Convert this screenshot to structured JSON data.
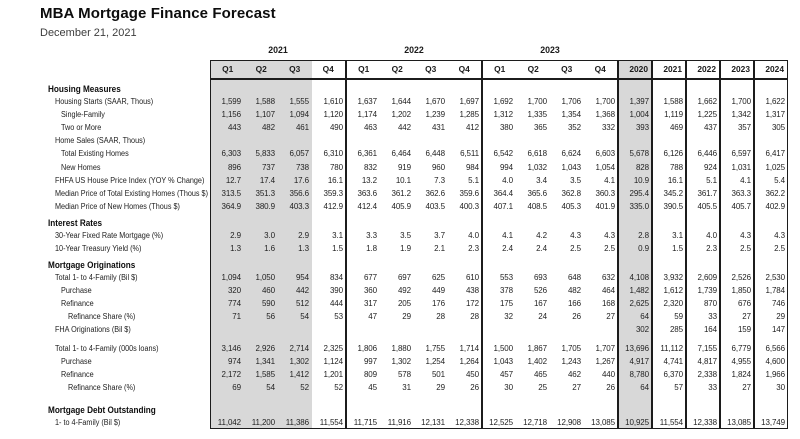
{
  "page": {
    "title": "MBA Mortgage Finance Forecast",
    "subtitle": "December 21, 2021"
  },
  "table": {
    "highlight_color": "#d8d8d8",
    "border_color": "#1c1c1c",
    "year_groups": [
      {
        "label": "2021",
        "quarters": [
          "Q1",
          "Q2",
          "Q3",
          "Q4"
        ]
      },
      {
        "label": "2022",
        "quarters": [
          "Q1",
          "Q2",
          "Q3",
          "Q4"
        ]
      },
      {
        "label": "2023",
        "quarters": [
          "Q1",
          "Q2",
          "Q3",
          "Q4"
        ]
      }
    ],
    "annual_columns": [
      "2020",
      "2021",
      "2022",
      "2023",
      "2024"
    ],
    "rows": [
      {
        "type": "section",
        "label": "Housing Measures"
      },
      {
        "type": "data",
        "indent": 1,
        "label": "Housing Starts (SAAR, Thous)",
        "cells": [
          "1,599",
          "1,588",
          "1,555",
          "1,610",
          "1,637",
          "1,644",
          "1,670",
          "1,697",
          "1,692",
          "1,700",
          "1,706",
          "1,700",
          "1,397",
          "1,588",
          "1,662",
          "1,700",
          "1,622"
        ]
      },
      {
        "type": "data",
        "indent": 2,
        "label": "Single-Family",
        "cells": [
          "1,156",
          "1,107",
          "1,094",
          "1,120",
          "1,174",
          "1,202",
          "1,239",
          "1,285",
          "1,312",
          "1,335",
          "1,354",
          "1,368",
          "1,004",
          "1,119",
          "1,225",
          "1,342",
          "1,317"
        ]
      },
      {
        "type": "data",
        "indent": 2,
        "label": "Two or More",
        "cells": [
          "443",
          "482",
          "461",
          "490",
          "463",
          "442",
          "431",
          "412",
          "380",
          "365",
          "352",
          "332",
          "393",
          "469",
          "437",
          "357",
          "305"
        ]
      },
      {
        "type": "data",
        "indent": 1,
        "label": "Home Sales (SAAR, Thous)",
        "cells": [
          "",
          "",
          "",
          "",
          "",
          "",
          "",
          "",
          "",
          "",
          "",
          "",
          "",
          "",
          "",
          "",
          ""
        ]
      },
      {
        "type": "data",
        "indent": 2,
        "label": "Total Existing Homes",
        "cells": [
          "6,303",
          "5,833",
          "6,057",
          "6,310",
          "6,361",
          "6,464",
          "6,448",
          "6,511",
          "6,542",
          "6,618",
          "6,624",
          "6,603",
          "5,678",
          "6,126",
          "6,446",
          "6,597",
          "6,417"
        ]
      },
      {
        "type": "data",
        "indent": 2,
        "label": "New Homes",
        "cells": [
          "896",
          "737",
          "738",
          "780",
          "832",
          "919",
          "960",
          "984",
          "994",
          "1,032",
          "1,043",
          "1,054",
          "828",
          "788",
          "924",
          "1,031",
          "1,025"
        ]
      },
      {
        "type": "data",
        "indent": 1,
        "label": "FHFA US House Price Index (YOY % Change)",
        "cells": [
          "12.7",
          "17.4",
          "17.6",
          "16.1",
          "13.2",
          "10.1",
          "7.3",
          "5.1",
          "4.0",
          "3.4",
          "3.5",
          "4.1",
          "10.9",
          "16.1",
          "5.1",
          "4.1",
          "5.4"
        ]
      },
      {
        "type": "data",
        "indent": 1,
        "label": "Median Price of Total Existing Homes (Thous $)",
        "cells": [
          "313.5",
          "351.3",
          "356.6",
          "359.3",
          "363.6",
          "361.2",
          "362.6",
          "359.6",
          "364.4",
          "365.6",
          "362.8",
          "360.3",
          "295.4",
          "345.2",
          "361.7",
          "363.3",
          "362.2"
        ]
      },
      {
        "type": "data",
        "indent": 1,
        "label": "Median Price of New Homes (Thous $)",
        "cells": [
          "364.9",
          "380.9",
          "403.3",
          "412.9",
          "412.4",
          "405.9",
          "403.5",
          "400.3",
          "407.1",
          "408.5",
          "405.3",
          "401.9",
          "335.0",
          "390.5",
          "405.5",
          "405.7",
          "402.9"
        ]
      },
      {
        "type": "section",
        "label": "Interest Rates"
      },
      {
        "type": "data",
        "indent": 1,
        "label": "30-Year Fixed Rate Mortgage (%)",
        "cells": [
          "2.9",
          "3.0",
          "2.9",
          "3.1",
          "3.3",
          "3.5",
          "3.7",
          "4.0",
          "4.1",
          "4.2",
          "4.3",
          "4.3",
          "2.8",
          "3.1",
          "4.0",
          "4.3",
          "4.3"
        ]
      },
      {
        "type": "data",
        "indent": 1,
        "label": "10-Year Treasury Yield (%)",
        "cells": [
          "1.3",
          "1.6",
          "1.3",
          "1.5",
          "1.8",
          "1.9",
          "2.1",
          "2.3",
          "2.4",
          "2.4",
          "2.5",
          "2.5",
          "0.9",
          "1.5",
          "2.3",
          "2.5",
          "2.5"
        ]
      },
      {
        "type": "section",
        "label": "Mortgage Originations"
      },
      {
        "type": "data",
        "indent": 1,
        "label": "Total 1- to 4-Family (Bil $)",
        "cells": [
          "1,094",
          "1,050",
          "954",
          "834",
          "677",
          "697",
          "625",
          "610",
          "553",
          "693",
          "648",
          "632",
          "4,108",
          "3,932",
          "2,609",
          "2,526",
          "2,530"
        ]
      },
      {
        "type": "data",
        "indent": 2,
        "label": "Purchase",
        "cells": [
          "320",
          "460",
          "442",
          "390",
          "360",
          "492",
          "449",
          "438",
          "378",
          "526",
          "482",
          "464",
          "1,482",
          "1,612",
          "1,739",
          "1,850",
          "1,784"
        ]
      },
      {
        "type": "data",
        "indent": 2,
        "label": "Refinance",
        "cells": [
          "774",
          "590",
          "512",
          "444",
          "317",
          "205",
          "176",
          "172",
          "175",
          "167",
          "166",
          "168",
          "2,625",
          "2,320",
          "870",
          "676",
          "746"
        ]
      },
      {
        "type": "data",
        "indent": 3,
        "label": "Refinance Share (%)",
        "cells": [
          "71",
          "56",
          "54",
          "53",
          "47",
          "29",
          "28",
          "28",
          "32",
          "24",
          "26",
          "27",
          "64",
          "59",
          "33",
          "27",
          "29"
        ]
      },
      {
        "type": "data",
        "indent": 1,
        "label": "FHA Originations (Bil $)",
        "cells": [
          "",
          "",
          "",
          "",
          "",
          "",
          "",
          "",
          "",
          "",
          "",
          "",
          "302",
          "285",
          "164",
          "159",
          "147"
        ]
      },
      {
        "type": "spacer"
      },
      {
        "type": "data",
        "indent": 1,
        "label": "Total 1- to 4-Family (000s loans)",
        "cells": [
          "3,146",
          "2,926",
          "2,714",
          "2,325",
          "1,806",
          "1,880",
          "1,755",
          "1,714",
          "1,500",
          "1,867",
          "1,705",
          "1,707",
          "13,696",
          "11,112",
          "7,155",
          "6,779",
          "6,566"
        ]
      },
      {
        "type": "data",
        "indent": 2,
        "label": "Purchase",
        "cells": [
          "974",
          "1,341",
          "1,302",
          "1,124",
          "997",
          "1,302",
          "1,254",
          "1,264",
          "1,043",
          "1,402",
          "1,243",
          "1,267",
          "4,917",
          "4,741",
          "4,817",
          "4,955",
          "4,600"
        ]
      },
      {
        "type": "data",
        "indent": 2,
        "label": "Refinance",
        "cells": [
          "2,172",
          "1,585",
          "1,412",
          "1,201",
          "809",
          "578",
          "501",
          "450",
          "457",
          "465",
          "462",
          "440",
          "8,780",
          "6,370",
          "2,338",
          "1,824",
          "1,966"
        ]
      },
      {
        "type": "data",
        "indent": 3,
        "label": "Refinance Share (%)",
        "cells": [
          "69",
          "54",
          "52",
          "52",
          "45",
          "31",
          "29",
          "26",
          "30",
          "25",
          "27",
          "26",
          "64",
          "57",
          "33",
          "27",
          "30"
        ]
      },
      {
        "type": "spacer"
      },
      {
        "type": "section",
        "label": "Mortgage Debt Outstanding"
      },
      {
        "type": "data",
        "indent": 1,
        "label": "1- to 4-Family (Bil $)",
        "cells": [
          "11,042",
          "11,200",
          "11,386",
          "11,554",
          "11,715",
          "11,916",
          "12,131",
          "12,338",
          "12,525",
          "12,718",
          "12,908",
          "13,085",
          "10,925",
          "11,554",
          "12,338",
          "13,085",
          "13,749"
        ]
      }
    ]
  }
}
